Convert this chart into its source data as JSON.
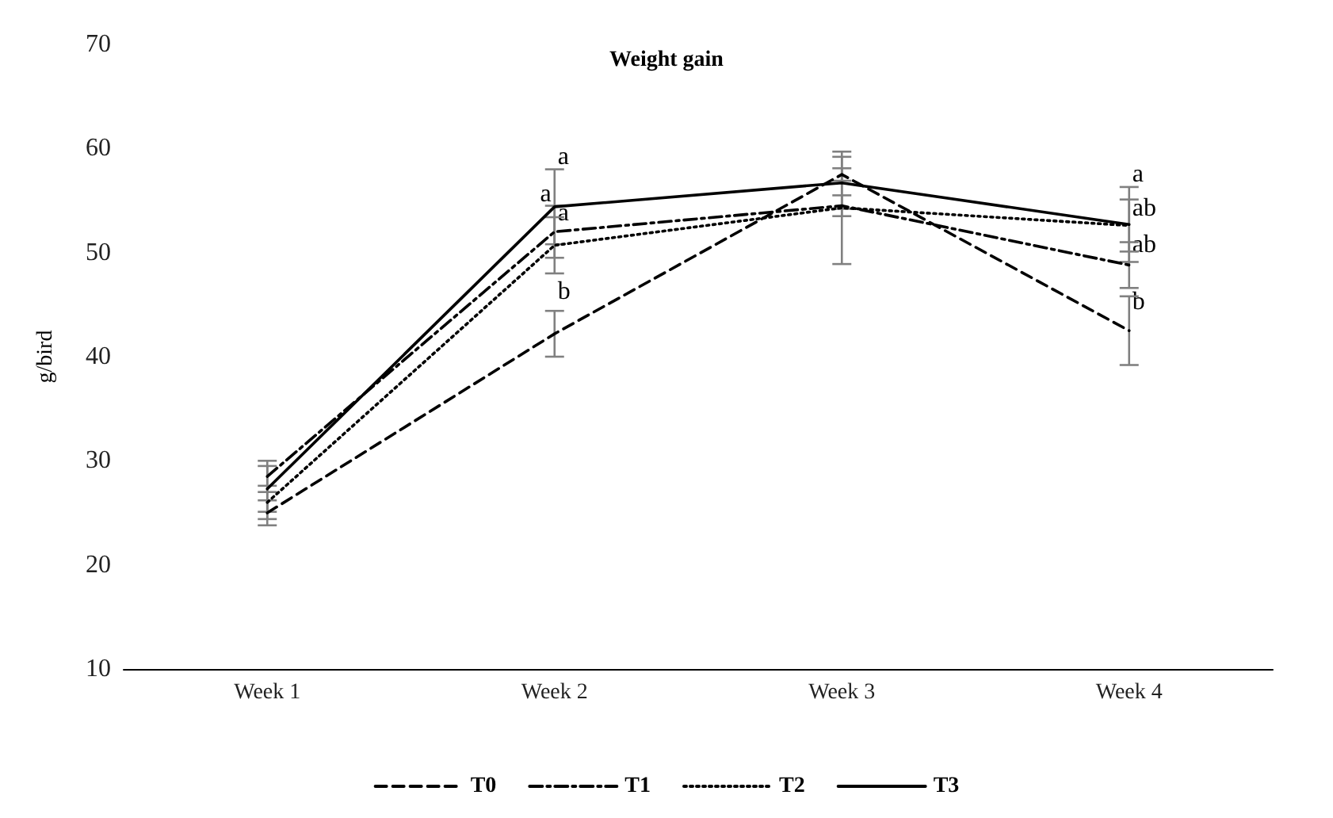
{
  "chart_data": {
    "type": "line",
    "title": "Weight gain",
    "ylabel": "g/bird",
    "categories": [
      "Week 1",
      "Week 2",
      "Week 3",
      "Week 4"
    ],
    "series": [
      {
        "name": "T0",
        "color": "#000000",
        "line_style": "dashed",
        "values": [
          25.0,
          42.2,
          57.5,
          42.5
        ],
        "errors": [
          1.2,
          2.2,
          0.6,
          3.3
        ]
      },
      {
        "name": "T1",
        "color": "#000000",
        "line_style": "dashdot",
        "values": [
          28.5,
          52.0,
          54.5,
          48.8
        ],
        "errors": [
          1.5,
          2.5,
          1.0,
          2.2
        ]
      },
      {
        "name": "T2",
        "color": "#000000",
        "line_style": "dotted",
        "values": [
          26.0,
          50.7,
          54.3,
          52.6
        ],
        "errors": [
          1.6,
          2.7,
          5.4,
          2.5
        ]
      },
      {
        "name": "T3",
        "color": "#000000",
        "line_style": "solid",
        "values": [
          27.3,
          54.4,
          56.7,
          52.7
        ],
        "errors": [
          2.2,
          3.6,
          2.5,
          3.6
        ]
      }
    ],
    "annotations": [
      {
        "text": "a",
        "x": "Week 2",
        "y": 58
      },
      {
        "text": "a",
        "x": "Week 2",
        "y": 52.6
      },
      {
        "text": "a",
        "x": "Week 2",
        "y": 54.4
      },
      {
        "text": "b",
        "x": "Week 2",
        "y": 45
      },
      {
        "text": "a",
        "x": "Week 4",
        "y": 56.3
      },
      {
        "text": "ab",
        "x": "Week 4",
        "y": 53.0
      },
      {
        "text": "ab",
        "x": "Week 4",
        "y": 49.5
      },
      {
        "text": "b",
        "x": "Week 4",
        "y": 44
      }
    ],
    "ylim": [
      10,
      70
    ],
    "yticks": [
      10,
      20,
      30,
      40,
      50,
      60,
      70
    ],
    "grid": false,
    "legend": "bottom",
    "marker": "none"
  }
}
